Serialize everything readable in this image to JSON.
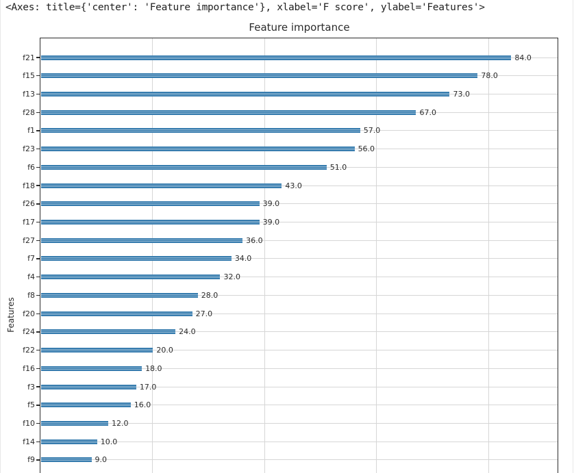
{
  "header": {
    "repr": "<Axes: title={'center': 'Feature importance'}, xlabel='F score', ylabel='Features'>"
  },
  "chart_data": {
    "type": "bar",
    "orientation": "horizontal",
    "title": "Feature importance",
    "xlabel": "F score",
    "ylabel": "Features",
    "categories": [
      "f21",
      "f15",
      "f13",
      "f28",
      "f1",
      "f23",
      "f6",
      "f18",
      "f26",
      "f17",
      "f27",
      "f7",
      "f4",
      "f8",
      "f20",
      "f24",
      "f22",
      "f16",
      "f3",
      "f5",
      "f10",
      "f14",
      "f9"
    ],
    "values": [
      84,
      78,
      73,
      67,
      57,
      56,
      51,
      43,
      39,
      39,
      36,
      34,
      32,
      28,
      27,
      24,
      20,
      18,
      17,
      16,
      12,
      10,
      9
    ],
    "value_labels": [
      "84.0",
      "78.0",
      "73.0",
      "67.0",
      "57.0",
      "56.0",
      "51.0",
      "43.0",
      "39.0",
      "39.0",
      "36.0",
      "34.0",
      "32.0",
      "28.0",
      "27.0",
      "24.0",
      "20.0",
      "18.0",
      "17.0",
      "16.0",
      "12.0",
      "10.0",
      "9.0"
    ],
    "xlim": [
      0,
      92.4
    ],
    "x_gridlines": [
      20,
      40,
      60,
      80
    ],
    "grid": true,
    "legend": "none",
    "note": "bottom x-axis and 'F score' label cut off at screenshot edge"
  },
  "colors": {
    "bar_blue": "#1f77b4",
    "grid_gray": "#d6d6d6",
    "spine_dark": "#2b2b2b",
    "text_dark": "#2b2b2b"
  }
}
